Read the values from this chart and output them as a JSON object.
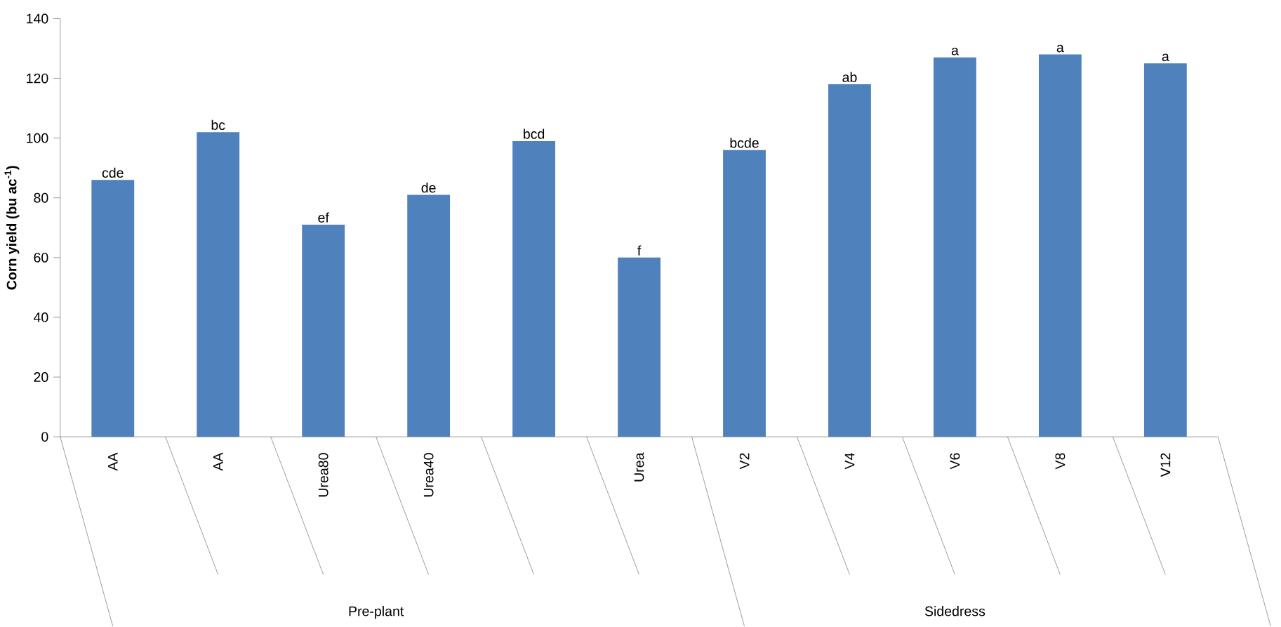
{
  "chart_data": {
    "type": "bar",
    "ylabel": "Corn yield (bu ac$^{-1}$)",
    "categories": [
      "AA",
      "AA",
      "Urea80",
      "Urea40",
      null,
      "Urea",
      "V2",
      "V4",
      "V6",
      "V8",
      "V12"
    ],
    "values": [
      86,
      102,
      71,
      81,
      99,
      60,
      96,
      118,
      127,
      128,
      125
    ],
    "value_labels": [
      "cde",
      "bc",
      "ef",
      "de",
      "bcd",
      "f",
      "bcde",
      "ab",
      "a",
      "a",
      "a"
    ],
    "color": "#4f81bd",
    "ylim": [
      0,
      140
    ],
    "yticks": [
      0,
      20,
      40,
      60,
      80,
      100,
      120,
      140
    ],
    "annotations": [
      "Pre-plant",
      "Sidedress"
    ]
  }
}
